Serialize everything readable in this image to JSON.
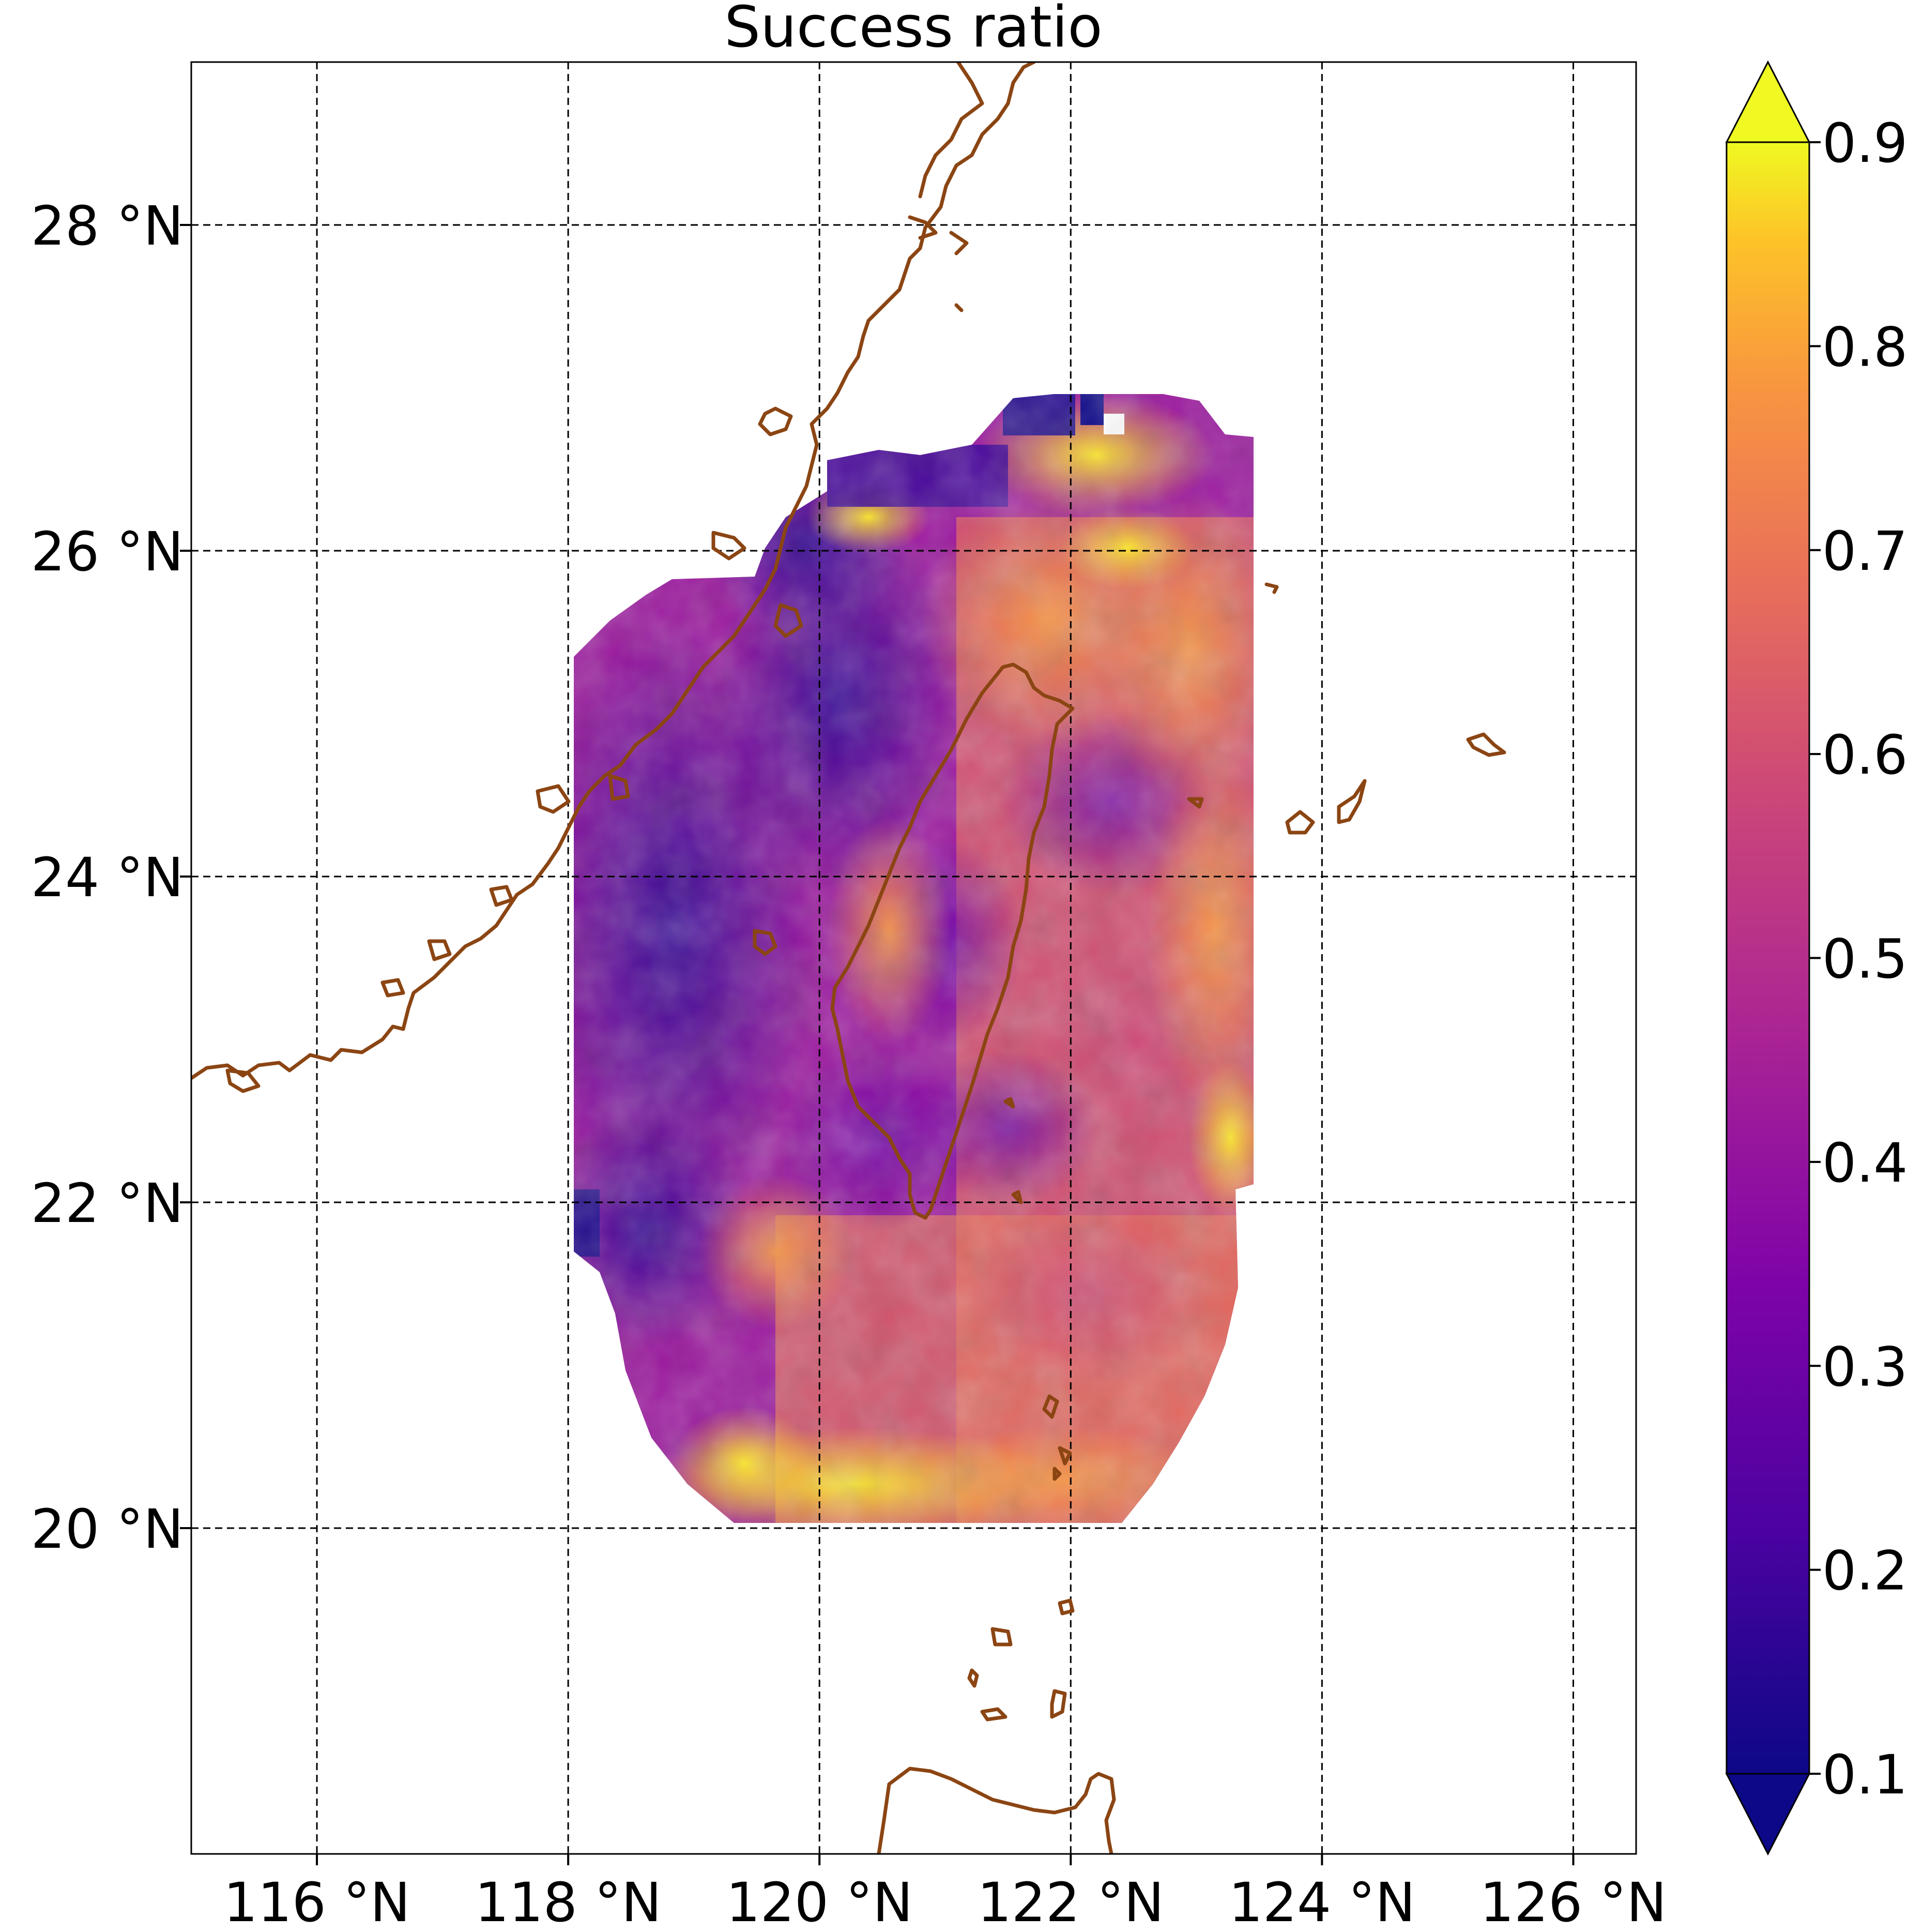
{
  "title": "Success ratio",
  "map": {
    "lon_range": [
      115,
      126.5
    ],
    "lat_range": [
      18,
      29
    ],
    "lon_ticks": [
      116,
      118,
      120,
      122,
      124,
      126
    ],
    "lat_ticks": [
      20,
      22,
      24,
      26,
      28
    ],
    "lon_tick_labels": [
      "116 °N",
      "118 °N",
      "120 °N",
      "122 °N",
      "124 °N",
      "126 °N"
    ],
    "lat_tick_labels": [
      "20 °N",
      "22 °N",
      "24 °N",
      "26 °N",
      "28 °N"
    ],
    "grid": "dashed",
    "coastline_color": "#8B4513"
  },
  "colorbar": {
    "colormap": "plasma",
    "range": [
      0.1,
      0.9
    ],
    "extend": "both",
    "ticks": [
      0.1,
      0.2,
      0.3,
      0.4,
      0.5,
      0.6,
      0.7,
      0.8,
      0.9
    ],
    "tick_labels": [
      "0.1",
      "0.2",
      "0.3",
      "0.4",
      "0.5",
      "0.6",
      "0.7",
      "0.8",
      "0.9"
    ]
  },
  "chart_data": {
    "type": "heatmap",
    "title": "Success ratio",
    "variable": "Success ratio",
    "x_range": [
      115,
      126.5
    ],
    "y_range": [
      18,
      29
    ],
    "data_extent_lon": [
      118,
      123.5
    ],
    "data_extent_lat": [
      20,
      26.9
    ],
    "color_range": [
      0.1,
      0.9
    ],
    "regions": [
      {
        "lon": 119.0,
        "lat": 24.0,
        "value": 0.25
      },
      {
        "lon": 120.5,
        "lat": 25.2,
        "value": 0.18
      },
      {
        "lon": 122.2,
        "lat": 25.3,
        "value": 0.75
      },
      {
        "lon": 122.5,
        "lat": 26.6,
        "value": 0.88
      },
      {
        "lon": 121.2,
        "lat": 23.3,
        "value": 0.55
      },
      {
        "lon": 120.6,
        "lat": 20.4,
        "value": 0.82
      },
      {
        "lon": 122.8,
        "lat": 23.2,
        "value": 0.62
      }
    ]
  }
}
